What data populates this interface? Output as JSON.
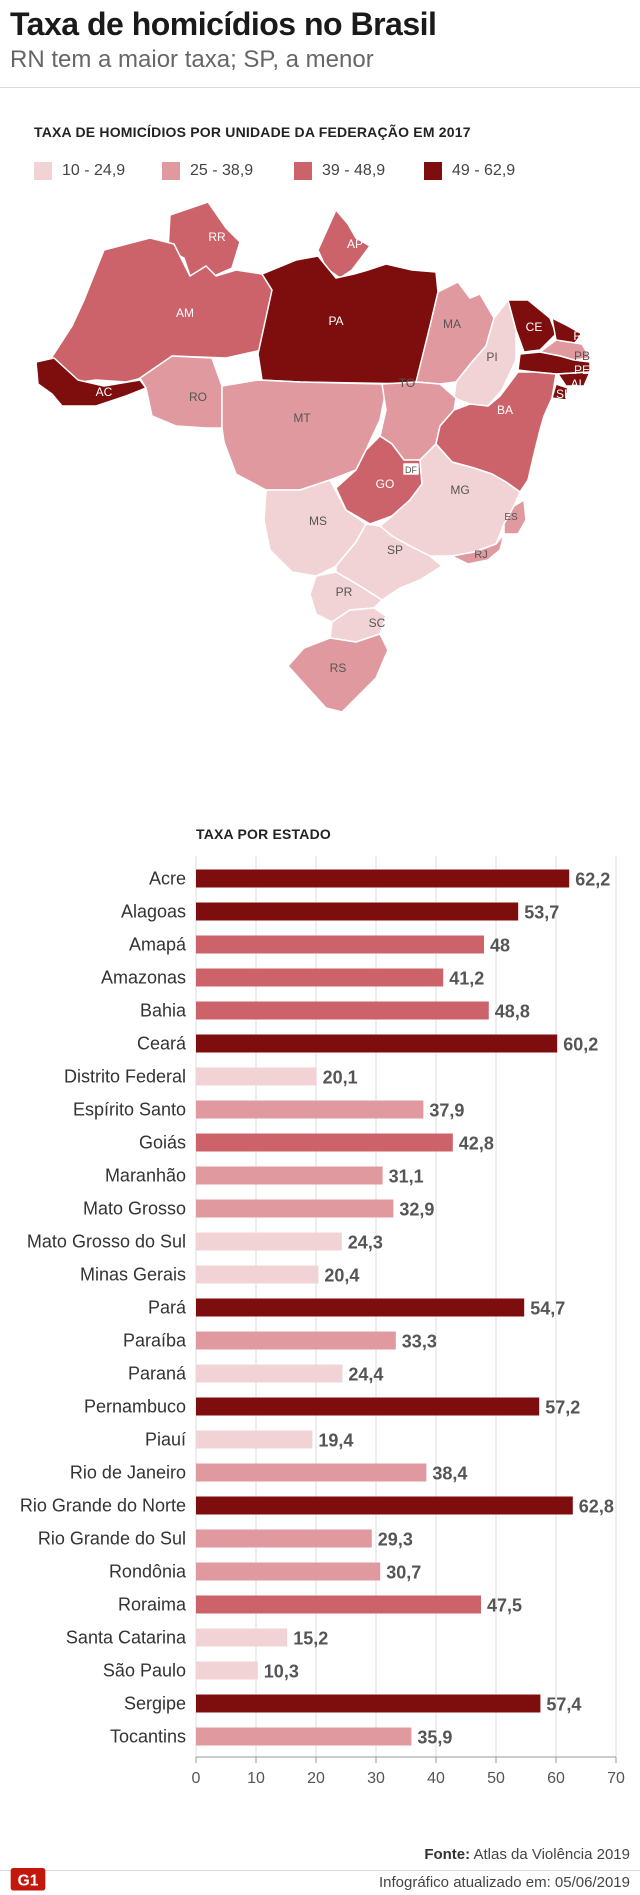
{
  "header": {
    "title": "Taxa de homicídios no Brasil",
    "subtitle": "RN tem a maior taxa; SP, a menor"
  },
  "map": {
    "heading": "TAXA DE HOMICÍDIOS POR UNIDADE DA FEDERAÇÃO EM 2017",
    "legend": [
      {
        "label": "10 - 24,9",
        "color": "#f2d3d5"
      },
      {
        "label": "25 - 38,9",
        "color": "#e09a9f"
      },
      {
        "label": "39 - 48,9",
        "color": "#cd636a"
      },
      {
        "label": "49 - 62,9",
        "color": "#7e0d0d"
      }
    ],
    "states": [
      {
        "abbr": "RR",
        "color": "#cd636a"
      },
      {
        "abbr": "AP",
        "color": "#cd636a"
      },
      {
        "abbr": "AM",
        "color": "#cd636a"
      },
      {
        "abbr": "PA",
        "color": "#7e0d0d"
      },
      {
        "abbr": "MA",
        "color": "#e09a9f"
      },
      {
        "abbr": "PI",
        "color": "#f2d3d5"
      },
      {
        "abbr": "CE",
        "color": "#7e0d0d"
      },
      {
        "abbr": "RN",
        "color": "#7e0d0d"
      },
      {
        "abbr": "PB",
        "color": "#e09a9f"
      },
      {
        "abbr": "PE",
        "color": "#7e0d0d"
      },
      {
        "abbr": "AL",
        "color": "#7e0d0d"
      },
      {
        "abbr": "SE",
        "color": "#7e0d0d"
      },
      {
        "abbr": "AC",
        "color": "#7e0d0d"
      },
      {
        "abbr": "RO",
        "color": "#e09a9f"
      },
      {
        "abbr": "MT",
        "color": "#e09a9f"
      },
      {
        "abbr": "TO",
        "color": "#e09a9f"
      },
      {
        "abbr": "BA",
        "color": "#cd636a"
      },
      {
        "abbr": "GO",
        "color": "#cd636a"
      },
      {
        "abbr": "DF",
        "color": "#f2d3d5"
      },
      {
        "abbr": "MG",
        "color": "#f2d3d5"
      },
      {
        "abbr": "ES",
        "color": "#e09a9f"
      },
      {
        "abbr": "MS",
        "color": "#f2d3d5"
      },
      {
        "abbr": "SP",
        "color": "#f2d3d5"
      },
      {
        "abbr": "RJ",
        "color": "#e09a9f"
      },
      {
        "abbr": "PR",
        "color": "#f2d3d5"
      },
      {
        "abbr": "SC",
        "color": "#f2d3d5"
      },
      {
        "abbr": "RS",
        "color": "#e09a9f"
      }
    ]
  },
  "chart_data": {
    "type": "bar",
    "orientation": "horizontal",
    "title": "TAXA POR ESTADO",
    "xlabel": "",
    "ylabel": "",
    "xlim": [
      0,
      70
    ],
    "xticks": [
      0,
      10,
      20,
      30,
      40,
      50,
      60,
      70
    ],
    "grid": true,
    "categories": [
      "Acre",
      "Alagoas",
      "Amapá",
      "Amazonas",
      "Bahia",
      "Ceará",
      "Distrito Federal",
      "Espírito Santo",
      "Goiás",
      "Maranhão",
      "Mato Grosso",
      "Mato Grosso do Sul",
      "Minas Gerais",
      "Pará",
      "Paraíba",
      "Paraná",
      "Pernambuco",
      "Piauí",
      "Rio de Janeiro",
      "Rio Grande do Norte",
      "Rio Grande do Sul",
      "Rondônia",
      "Roraima",
      "Santa Catarina",
      "São Paulo",
      "Sergipe",
      "Tocantins"
    ],
    "values": [
      62.2,
      53.7,
      48,
      41.2,
      48.8,
      60.2,
      20.1,
      37.9,
      42.8,
      31.1,
      32.9,
      24.3,
      20.4,
      54.7,
      33.3,
      24.4,
      57.2,
      19.4,
      38.4,
      62.8,
      29.3,
      30.7,
      47.5,
      15.2,
      10.3,
      57.4,
      35.9
    ],
    "value_labels": [
      "62,2",
      "53,7",
      "48",
      "41,2",
      "48,8",
      "60,2",
      "20,1",
      "37,9",
      "42,8",
      "31,1",
      "32,9",
      "24,3",
      "20,4",
      "54,7",
      "33,3",
      "24,4",
      "57,2",
      "19,4",
      "38,4",
      "62,8",
      "29,3",
      "30,7",
      "47,5",
      "15,2",
      "10,3",
      "57,4",
      "35,9"
    ]
  },
  "footer": {
    "source_label": "Fonte:",
    "source_text": "Atlas da Violência 2019",
    "updated": "Infográfico atualizado em: 05/06/2019",
    "logo_text": "G1"
  }
}
